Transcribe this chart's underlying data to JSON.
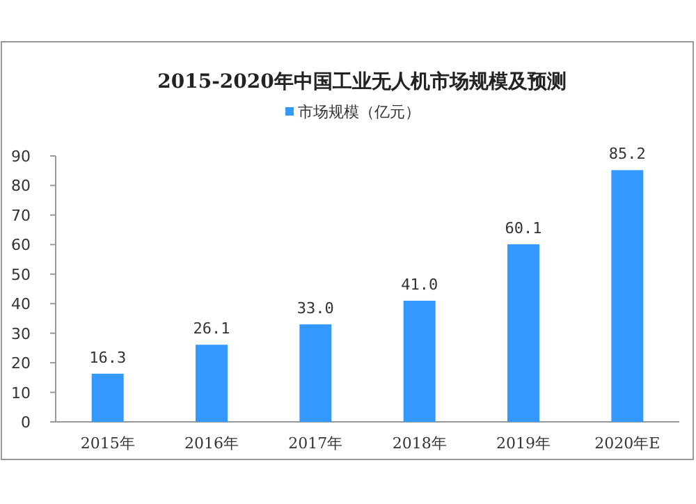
{
  "chart_data": {
    "type": "bar",
    "title": "2015-2020年中国工业无人机市场规模及预测",
    "categories": [
      "2015年",
      "2016年",
      "2017年",
      "2018年",
      "2019年",
      "2020年E"
    ],
    "series": [
      {
        "name": "市场规模（亿元）",
        "color": "#3399ff",
        "values": [
          16.3,
          26.1,
          33.0,
          41.0,
          60.1,
          85.2
        ]
      }
    ],
    "value_labels": [
      "16.3",
      "26.1",
      "33.0",
      "41.0",
      "60.1",
      "85.2"
    ],
    "ylim": [
      0,
      90
    ],
    "yticks": [
      0,
      10,
      20,
      30,
      40,
      50,
      60,
      70,
      80,
      90
    ],
    "legend": "top",
    "grid": false
  }
}
